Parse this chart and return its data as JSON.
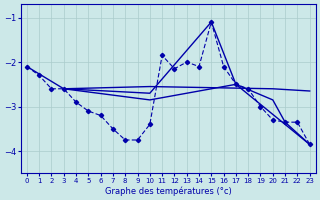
{
  "xlabel": "Graphe des températures (°c)",
  "background_color": "#cce8e8",
  "grid_color": "#aacccc",
  "line_color": "#0000aa",
  "x_ticks": [
    0,
    1,
    2,
    3,
    4,
    5,
    6,
    7,
    8,
    9,
    10,
    11,
    12,
    13,
    14,
    15,
    16,
    17,
    18,
    19,
    20,
    21,
    22,
    23
  ],
  "ylim": [
    -4.5,
    -0.7
  ],
  "xlim": [
    -0.5,
    23.5
  ],
  "yticks": [
    -4,
    -3,
    -2,
    -1
  ],
  "series1_x": [
    0,
    1,
    2,
    3,
    4,
    5,
    6,
    7,
    8,
    9,
    10,
    11,
    12,
    13,
    14,
    15,
    16,
    17,
    18,
    19,
    20,
    21,
    22,
    23
  ],
  "series1_y": [
    -2.1,
    -2.3,
    -2.6,
    -2.6,
    -2.9,
    -3.1,
    -3.2,
    -3.5,
    -3.75,
    -3.75,
    -3.4,
    -1.85,
    -2.15,
    -2.0,
    -2.1,
    -1.1,
    -2.1,
    -2.5,
    -2.6,
    -3.0,
    -3.3,
    -3.35,
    -3.35,
    -3.85
  ],
  "series2_x": [
    0,
    3,
    10,
    20,
    23
  ],
  "series2_y": [
    -2.1,
    -2.6,
    -2.55,
    -2.6,
    -2.65
  ],
  "series3_x": [
    3,
    10,
    15,
    17,
    20,
    21,
    23
  ],
  "series3_y": [
    -2.6,
    -2.7,
    -1.1,
    -2.5,
    -2.85,
    -3.35,
    -3.85
  ],
  "series4_x": [
    3,
    10,
    14,
    17,
    23
  ],
  "series4_y": [
    -2.6,
    -2.85,
    -2.65,
    -2.5,
    -3.85
  ]
}
